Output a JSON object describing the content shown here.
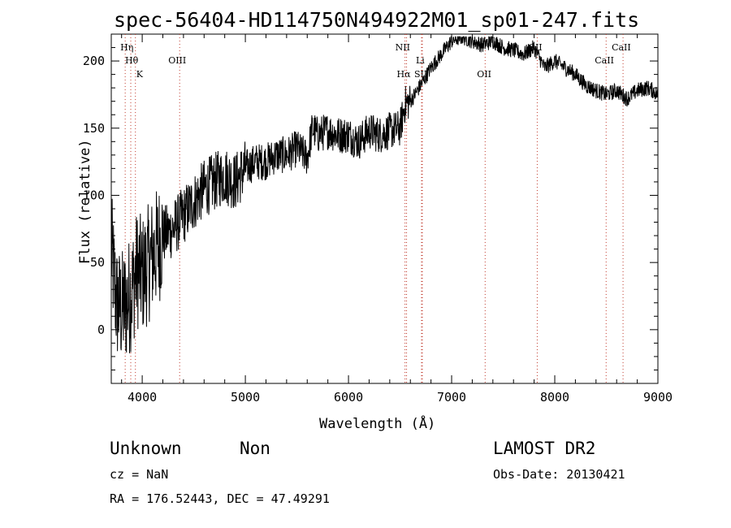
{
  "chart_data": {
    "type": "line",
    "title": "spec-56404-HD114750N494922M01_sp01-247.fits",
    "xlabel": "Wavelength (Å)",
    "ylabel": "Flux (relative)",
    "xlim": [
      3700,
      9000
    ],
    "ylim": [
      -40,
      220
    ],
    "xticks": [
      4000,
      5000,
      6000,
      7000,
      8000,
      9000
    ],
    "yticks": [
      0,
      50,
      100,
      150,
      200
    ],
    "x": [
      3700,
      3750,
      3800,
      3850,
      3900,
      3950,
      4000,
      4100,
      4200,
      4300,
      4400,
      4500,
      4600,
      4700,
      4800,
      4900,
      5000,
      5100,
      5200,
      5300,
      5400,
      5500,
      5600,
      5650,
      5700,
      5800,
      5900,
      6000,
      6100,
      6200,
      6300,
      6400,
      6500,
      6550,
      6600,
      6700,
      6800,
      6900,
      7000,
      7100,
      7200,
      7300,
      7400,
      7500,
      7600,
      7700,
      7800,
      7900,
      8000,
      8100,
      8200,
      8300,
      8400,
      8500,
      8600,
      8700,
      8800,
      8900,
      8950,
      9000
    ],
    "y": [
      60,
      20,
      15,
      20,
      30,
      45,
      40,
      55,
      70,
      75,
      85,
      95,
      105,
      110,
      115,
      110,
      120,
      125,
      125,
      130,
      130,
      135,
      128,
      150,
      145,
      148,
      145,
      145,
      140,
      148,
      145,
      148,
      150,
      168,
      170,
      182,
      195,
      205,
      215,
      218,
      215,
      212,
      215,
      210,
      208,
      205,
      210,
      195,
      200,
      195,
      190,
      182,
      178,
      175,
      178,
      172,
      178,
      180,
      178,
      175
    ],
    "lines": [
      {
        "label": "Hη",
        "x": 3835
      },
      {
        "label": "Hθ",
        "x": 3889
      },
      {
        "label": "K",
        "x": 3934
      },
      {
        "label": "OIII",
        "x": 4363
      },
      {
        "label": "NII",
        "x": 6548
      },
      {
        "label": "Hα",
        "x": 6563
      },
      {
        "label": "SII",
        "x": 6716
      },
      {
        "label": "Li",
        "x": 6708
      },
      {
        "label": "OII",
        "x": 7325
      },
      {
        "label": "SII",
        "x": 7830
      },
      {
        "label": "CaII",
        "x": 8498
      },
      {
        "label": "CaII",
        "x": 8662
      }
    ],
    "grid": false
  },
  "footer": {
    "class_label": "Unknown",
    "subclass_label": "Non",
    "survey": "LAMOST DR2",
    "cz": "cz = NaN",
    "obs_date": "Obs-Date: 20130421",
    "coords": "RA = 176.52443, DEC =  47.49291"
  }
}
